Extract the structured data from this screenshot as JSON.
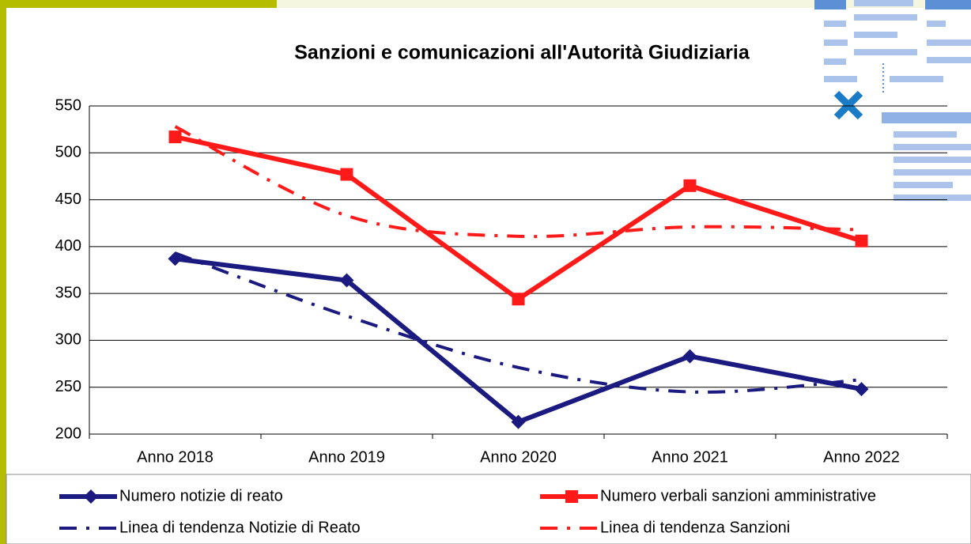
{
  "chart_data": {
    "type": "line",
    "title": "Sanzioni e comunicazioni all'Autorità Giudiziaria",
    "categories": [
      "Anno 2018",
      "Anno 2019",
      "Anno 2020",
      "Anno 2021",
      "Anno 2022"
    ],
    "ylim": [
      200,
      550
    ],
    "yticks": [
      200,
      250,
      300,
      350,
      400,
      450,
      500,
      550
    ],
    "grid": true,
    "series": [
      {
        "name": "Numero notizie di reato",
        "color": "#1a1a80",
        "style": "solid",
        "marker": "diamond",
        "values": [
          387,
          364,
          213,
          283,
          248
        ]
      },
      {
        "name": "Numero verbali sanzioni amministrative",
        "color": "#ff1a1a",
        "style": "solid",
        "marker": "square",
        "values": [
          517,
          477,
          344,
          465,
          406
        ]
      },
      {
        "name": "Linea di tendenza Notizie di Reato",
        "color": "#1a1a80",
        "style": "dashdot",
        "marker": "none",
        "values": [
          393,
          326,
          271,
          245,
          258
        ]
      },
      {
        "name": "Linea di tendenza Sanzioni",
        "color": "#ff1a1a",
        "style": "dashdot",
        "marker": "none",
        "values": [
          528,
          433,
          411,
          421,
          418
        ]
      }
    ]
  }
}
